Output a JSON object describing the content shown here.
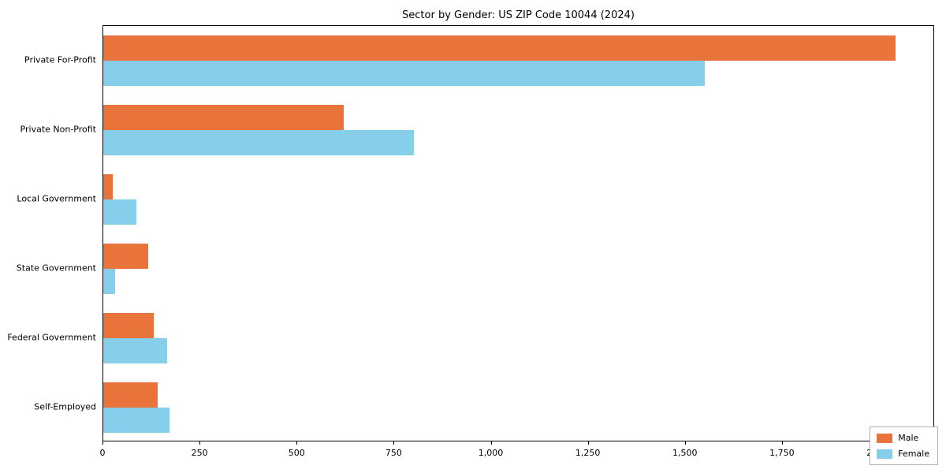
{
  "title": "Sector by Gender: US ZIP Code 10044 (2024)",
  "colors": {
    "male": "#E8743B",
    "female": "#87CEEB",
    "spine": "#000000",
    "background": "#ffffff"
  },
  "legend": {
    "items": [
      {
        "label": "Male",
        "color": "#E8743B"
      },
      {
        "label": "Female",
        "color": "#87CEEB"
      }
    ]
  },
  "chart_data": {
    "type": "bar",
    "orientation": "horizontal",
    "title": "Sector by Gender: US ZIP Code 10044 (2024)",
    "categories": [
      "Private For-Profit",
      "Private Non-Profit",
      "Local Government",
      "State Government",
      "Federal Government",
      "Self-Employed"
    ],
    "series": [
      {
        "name": "Male",
        "color": "#E8743B",
        "values": [
          2040,
          620,
          25,
          115,
          130,
          140
        ]
      },
      {
        "name": "Female",
        "color": "#87CEEB",
        "values": [
          1550,
          800,
          85,
          30,
          165,
          170
        ]
      }
    ],
    "xlabel": "",
    "ylabel": "",
    "xlim": [
      0,
      2142
    ],
    "xticks": [
      0,
      250,
      500,
      750,
      1000,
      1250,
      1500,
      1750,
      2000
    ],
    "grid": false,
    "legend_position": "lower right"
  }
}
